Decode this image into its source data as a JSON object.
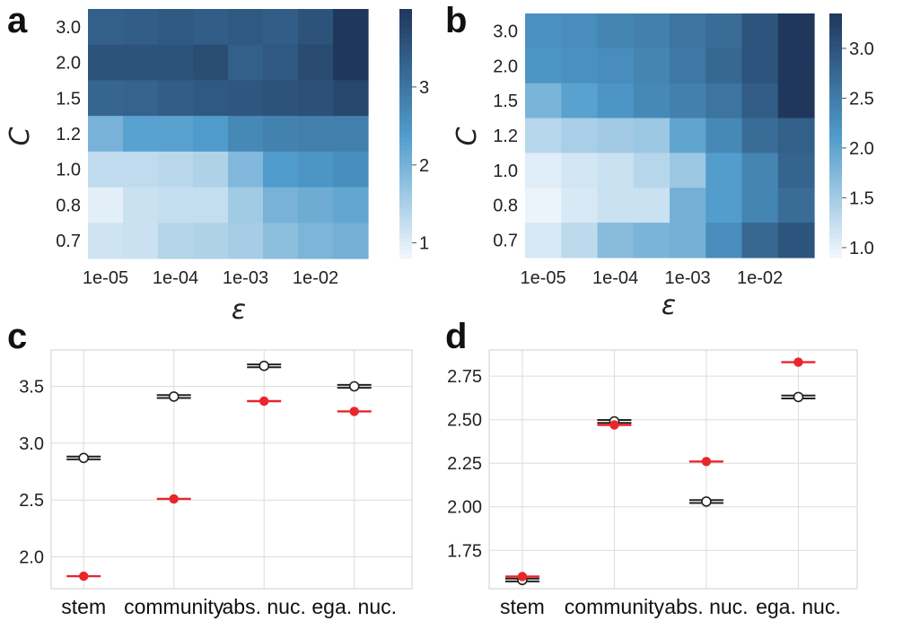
{
  "panels": {
    "a": "a",
    "b": "b",
    "c": "c",
    "d": "d"
  },
  "chart_data": [
    {
      "panel": "a",
      "type": "heatmap",
      "xlabel": "ε",
      "ylabel": "C",
      "x_categories": [
        "1e-05",
        "",
        "1e-04",
        "",
        "1e-03",
        "",
        "1e-02",
        ""
      ],
      "x_tick_labels": [
        "1e-05",
        "1e-04",
        "1e-03",
        "1e-02"
      ],
      "y_categories": [
        "3.0",
        "2.0",
        "1.5",
        "1.2",
        "1.0",
        "0.8",
        "0.7"
      ],
      "values": [
        [
          3.35,
          3.4,
          3.45,
          3.4,
          3.45,
          3.4,
          3.55,
          4.0
        ],
        [
          3.55,
          3.55,
          3.55,
          3.65,
          3.35,
          3.45,
          3.7,
          4.0
        ],
        [
          3.25,
          3.3,
          3.4,
          3.45,
          3.5,
          3.55,
          3.6,
          3.75
        ],
        [
          2.0,
          2.3,
          2.3,
          2.4,
          2.7,
          2.8,
          2.85,
          2.85
        ],
        [
          1.3,
          1.3,
          1.35,
          1.45,
          1.9,
          2.4,
          2.5,
          2.6
        ],
        [
          0.95,
          1.2,
          1.25,
          1.25,
          1.6,
          2.0,
          2.1,
          2.2
        ],
        [
          1.15,
          1.2,
          1.4,
          1.45,
          1.55,
          1.8,
          1.95,
          2.05
        ]
      ],
      "colorbar": {
        "range": [
          0.8,
          4.0
        ],
        "ticks": [
          1,
          2,
          3
        ]
      },
      "colors": {
        "low": "#f2f8fd",
        "mid": "#4f9bcb",
        "high": "#20375c"
      }
    },
    {
      "panel": "b",
      "type": "heatmap",
      "xlabel": "ε",
      "ylabel": "C",
      "x_categories": [
        "1e-05",
        "",
        "1e-04",
        "",
        "1e-03",
        "",
        "1e-02",
        ""
      ],
      "x_tick_labels": [
        "1e-05",
        "1e-04",
        "1e-03",
        "1e-02"
      ],
      "y_categories": [
        "3.0",
        "2.0",
        "1.5",
        "1.2",
        "1.0",
        "0.8",
        "0.7"
      ],
      "values": [
        [
          2.25,
          2.3,
          2.4,
          2.45,
          2.6,
          2.7,
          3.0,
          3.35
        ],
        [
          2.2,
          2.25,
          2.3,
          2.4,
          2.55,
          2.75,
          3.0,
          3.35
        ],
        [
          1.8,
          2.05,
          2.2,
          2.35,
          2.45,
          2.6,
          2.9,
          3.35
        ],
        [
          1.35,
          1.45,
          1.5,
          1.55,
          2.0,
          2.35,
          2.7,
          2.85
        ],
        [
          1.05,
          1.15,
          1.2,
          1.35,
          1.55,
          2.1,
          2.4,
          2.8
        ],
        [
          0.95,
          1.1,
          1.2,
          1.2,
          1.85,
          2.1,
          2.4,
          2.7
        ],
        [
          1.1,
          1.3,
          1.7,
          1.8,
          1.85,
          2.3,
          2.75,
          3.0
        ]
      ],
      "colorbar": {
        "range": [
          0.9,
          3.35
        ],
        "ticks": [
          1.0,
          1.5,
          2.0,
          2.5,
          3.0
        ]
      },
      "colors": {
        "low": "#f2f8fd",
        "mid": "#4f9bcb",
        "high": "#20375c"
      }
    },
    {
      "panel": "c",
      "type": "scatter",
      "categories": [
        "stem",
        "community",
        "abs. nuc.",
        "ega. nuc."
      ],
      "yticks": [
        2.0,
        2.5,
        3.0,
        3.5
      ],
      "ylim": [
        1.72,
        3.82
      ],
      "series": [
        {
          "values": [
            2.87,
            3.41,
            3.68,
            3.5
          ],
          "marker": "open",
          "color": "#222222"
        },
        {
          "values": [
            1.83,
            2.51,
            3.37,
            3.28
          ],
          "marker": "filled",
          "color": "#e8262b"
        }
      ]
    },
    {
      "panel": "d",
      "type": "scatter",
      "categories": [
        "stem",
        "community",
        "abs. nuc.",
        "ega. nuc."
      ],
      "yticks": [
        1.75,
        2.0,
        2.25,
        2.5,
        2.75
      ],
      "ylim": [
        1.53,
        2.9
      ],
      "series": [
        {
          "values": [
            1.58,
            2.49,
            2.03,
            2.63
          ],
          "marker": "open",
          "color": "#222222"
        },
        {
          "values": [
            1.6,
            2.47,
            2.26,
            2.83
          ],
          "marker": "filled",
          "color": "#e8262b"
        }
      ]
    }
  ]
}
